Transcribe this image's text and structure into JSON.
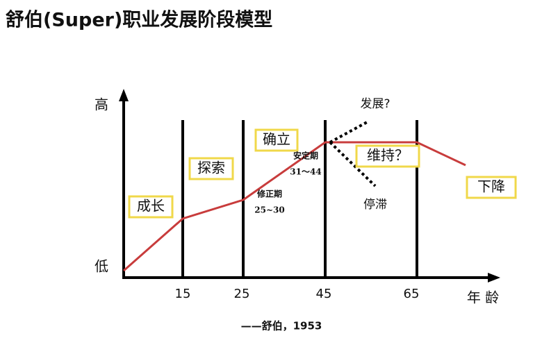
{
  "title": "舒伯(Super)职业发展阶段模型",
  "axis": {
    "y_high": "高",
    "y_low": "低",
    "x_label": "年 龄",
    "x_ticks": [
      "15",
      "25",
      "45",
      "65"
    ]
  },
  "stages": [
    "成长",
    "探索",
    "确立",
    "维持？",
    "下降"
  ],
  "annotations": {
    "develop": "发展?",
    "stagnate": "停滞",
    "stable": "安定期",
    "stable_range": "31～44",
    "revise": "修正期",
    "revise_range": "25~30"
  },
  "caption": "——舒伯，1953"
}
